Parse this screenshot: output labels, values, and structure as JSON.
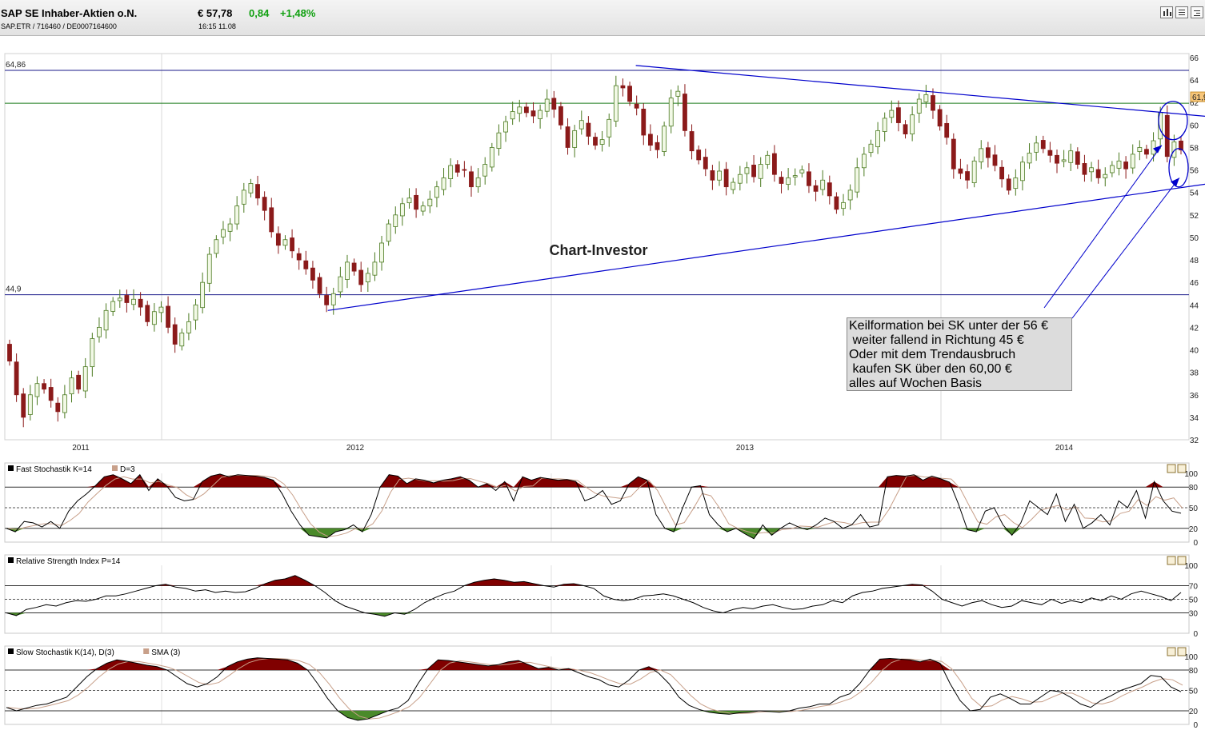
{
  "header": {
    "name": "SAP SE Inhaber-Aktien o.N.",
    "price": "€ 57,78",
    "change": "0,84",
    "change_pct": "+1,48%",
    "identifiers": "SAP.ETR   /   716460   /   DE0007164600",
    "time": "16:15     11.08"
  },
  "colors": {
    "up_candle": "#f2f9e6",
    "up_edge": "#4b7a20",
    "down_candle": "#8b1a1a",
    "overbought_fill": "#800000",
    "oversold_fill": "#4a8a2a",
    "trend_line": "#0000cc",
    "resistance_line": "#1a7a1a",
    "price_label_bg": "#f7c67a"
  },
  "toolbar": {
    "icons": [
      "bar-chart-icon",
      "news-icon",
      "settings-icon"
    ]
  },
  "chart_data": [
    {
      "type": "candlestick",
      "watermark": "Chart-Investor",
      "ylim": [
        32,
        66
      ],
      "yticks": [
        32,
        34,
        36,
        38,
        40,
        42,
        44,
        46,
        48,
        50,
        52,
        54,
        56,
        58,
        60,
        62,
        64,
        66
      ],
      "ytick_labels": [
        "32",
        "34",
        "36",
        "38",
        "40",
        "42",
        "44",
        "46",
        "48",
        "50",
        "52",
        "54",
        "56",
        "58",
        "60",
        "62",
        "64",
        "66"
      ],
      "xtick_labels": [
        "2011",
        "2012",
        "2013",
        "2014"
      ],
      "x_boundaries": [
        "2011",
        "2012",
        "2013",
        "2014"
      ],
      "current_price_label": "61,94",
      "levels": [
        {
          "label": "64,86",
          "value": 64.86
        },
        {
          "label": "44,9",
          "value": 44.9
        },
        {
          "label": "",
          "value": 61.94
        }
      ],
      "trendlines": [
        {
          "from": [
            2011.9,
            43.5
          ],
          "to": [
            2014.75,
            56.0
          ]
        },
        {
          "from": [
            2012.72,
            65.3
          ],
          "to": [
            2014.75,
            60.0
          ]
        }
      ],
      "closes": [
        39,
        36,
        34,
        36,
        37,
        36.5,
        35.5,
        34.5,
        36,
        37.5,
        36.5,
        38.5,
        41,
        42,
        43.5,
        44.3,
        44.6,
        44.2,
        44.5,
        43.8,
        42.5,
        43.4,
        43.8,
        42,
        40.5,
        41.5,
        42.5,
        44,
        46,
        48.5,
        49.8,
        50.7,
        51.2,
        52.8,
        54.2,
        54.8,
        53.5,
        52.4,
        50.5,
        49.3,
        49.8,
        48.8,
        48,
        47.2,
        46.2,
        45,
        44,
        45,
        46.5,
        47.8,
        47,
        45.8,
        46.8,
        47.8,
        49.5,
        51.2,
        52,
        53,
        53.5,
        52.5,
        52.8,
        53.4,
        54.5,
        55.3,
        56.4,
        55.8,
        56,
        54.5,
        55.3,
        56.5,
        58,
        59.3,
        60.3,
        61.2,
        61.6,
        61.1,
        60.8,
        61.3,
        62.3,
        61.4,
        60,
        58,
        59.5,
        60.4,
        59,
        58.2,
        58.7,
        60.5,
        63.5,
        63.3,
        62.1,
        61.5,
        59.1,
        58.2,
        57.8,
        59.9,
        62.4,
        63,
        59.5,
        57.7,
        56.9,
        56.1,
        55.1,
        55.9,
        54.5,
        54.9,
        55.6,
        56.2,
        55.4,
        56.5,
        57.3,
        55.6,
        54.8,
        55.3,
        55.5,
        56,
        54.6,
        54.1,
        55.1,
        53.7,
        52.5,
        53.1,
        54.2,
        56.2,
        57.4,
        58.3,
        59.5,
        60.6,
        61.3,
        60.2,
        59.2,
        60.9,
        62.3,
        62.7,
        61.3,
        59.9,
        58.9,
        56.1,
        55.7,
        55.1,
        56.8,
        57.9,
        57.1,
        56.4,
        55.2,
        54.2,
        55.3,
        56.7,
        57.5,
        58.4,
        57.9,
        57.3,
        56.6,
        56.9,
        57.7,
        56.5,
        55.6,
        56.2,
        55.3,
        55.6,
        56.4,
        56.8,
        56.1,
        57.4,
        58,
        57.4,
        58.6,
        61.1,
        57.2,
        58.5,
        57.78
      ],
      "opens_jitter_note": ""
    },
    {
      "type": "line",
      "title": "Fast Stochastik K=14",
      "legend": [
        {
          "swatch": "#000000",
          "label": "Fast Stochastik K=14"
        },
        {
          "swatch": "#c8a08a",
          "label": "D=3"
        }
      ],
      "ylim": [
        0,
        100
      ],
      "ytick_labels": [
        "0",
        "20",
        "50",
        "80",
        "100"
      ],
      "yticks": [
        0,
        20,
        50,
        80,
        100
      ],
      "values": [
        20,
        15,
        30,
        28,
        22,
        30,
        20,
        45,
        60,
        70,
        82,
        95,
        98,
        92,
        85,
        98,
        75,
        92,
        82,
        65,
        60,
        62,
        88,
        96,
        99,
        95,
        98,
        97,
        96,
        94,
        90,
        70,
        45,
        25,
        10,
        8,
        6,
        15,
        18,
        25,
        15,
        40,
        80,
        98,
        96,
        85,
        92,
        90,
        86,
        90,
        92,
        95,
        90,
        80,
        85,
        75,
        88,
        60,
        95,
        90,
        94,
        92,
        90,
        91,
        88,
        60,
        65,
        75,
        55,
        60,
        85,
        95,
        90,
        40,
        20,
        15,
        50,
        80,
        82,
        40,
        25,
        15,
        20,
        12,
        5,
        25,
        10,
        20,
        28,
        22,
        18,
        25,
        35,
        30,
        20,
        25,
        40,
        22,
        25,
        95,
        97,
        96,
        98,
        90,
        96,
        92,
        87,
        55,
        18,
        15,
        45,
        50,
        25,
        10,
        28,
        60,
        50,
        40,
        70,
        30,
        55,
        20,
        28,
        40,
        25,
        60,
        50,
        75,
        35,
        88,
        60,
        45,
        42
      ]
    },
    {
      "type": "line",
      "title": "Relative Strength Index P=14",
      "legend": [
        {
          "swatch": "#000000",
          "label": "Relative Strength Index P=14"
        }
      ],
      "ylim": [
        0,
        100
      ],
      "ytick_labels": [
        "0",
        "30",
        "50",
        "70",
        "100"
      ],
      "yticks": [
        0,
        30,
        50,
        70,
        100
      ],
      "values": [
        30,
        26,
        35,
        38,
        42,
        40,
        45,
        48,
        47,
        50,
        55,
        55,
        58,
        62,
        66,
        70,
        72,
        68,
        66,
        62,
        64,
        60,
        62,
        60,
        61,
        66,
        73,
        78,
        80,
        85,
        78,
        70,
        60,
        48,
        40,
        35,
        30,
        28,
        25,
        30,
        28,
        35,
        45,
        52,
        58,
        62,
        70,
        75,
        78,
        80,
        78,
        75,
        76,
        73,
        70,
        68,
        72,
        73,
        70,
        66,
        55,
        50,
        48,
        50,
        55,
        56,
        58,
        55,
        50,
        45,
        38,
        33,
        30,
        35,
        38,
        36,
        40,
        42,
        38,
        35,
        36,
        40,
        42,
        48,
        45,
        55,
        60,
        62,
        66,
        68,
        70,
        72,
        71,
        62,
        50,
        45,
        40,
        45,
        48,
        42,
        38,
        40,
        48,
        45,
        42,
        50,
        44,
        48,
        45,
        52,
        48,
        55,
        50,
        58,
        62,
        58,
        54,
        48,
        60
      ]
    },
    {
      "type": "line",
      "title": "Slow Stochastik K(14), D(3)",
      "legend": [
        {
          "swatch": "#000000",
          "label": "Slow Stochastik K(14), D(3)"
        },
        {
          "swatch": "#c8a08a",
          "label": "SMA (3)"
        }
      ],
      "ylim": [
        0,
        100
      ],
      "ytick_labels": [
        "0",
        "20",
        "50",
        "80",
        "100"
      ],
      "yticks": [
        0,
        20,
        50,
        80,
        100
      ],
      "values": [
        25,
        20,
        24,
        28,
        30,
        35,
        40,
        55,
        70,
        82,
        90,
        95,
        93,
        90,
        87,
        85,
        80,
        70,
        60,
        55,
        60,
        70,
        85,
        92,
        96,
        98,
        97,
        96,
        95,
        90,
        80,
        60,
        38,
        20,
        10,
        6,
        8,
        14,
        20,
        24,
        35,
        60,
        82,
        95,
        94,
        92,
        90,
        88,
        86,
        88,
        92,
        94,
        88,
        82,
        84,
        80,
        82,
        76,
        70,
        66,
        58,
        55,
        65,
        80,
        85,
        75,
        60,
        40,
        28,
        22,
        18,
        16,
        15,
        17,
        18,
        20,
        19,
        18,
        20,
        24,
        26,
        30,
        30,
        40,
        45,
        60,
        80,
        96,
        97,
        96,
        95,
        92,
        96,
        90,
        60,
        35,
        20,
        22,
        40,
        45,
        38,
        30,
        30,
        40,
        50,
        48,
        40,
        30,
        25,
        35,
        42,
        50,
        55,
        60,
        72,
        70,
        55,
        48
      ]
    }
  ],
  "annotation": {
    "lines": [
      "Keilformation bei SK unter der 56 €",
      " weiter fallend in Richtung 45 €",
      "Oder mit dem Trendausbruch",
      " kaufen SK über den 60,00 €",
      "alles auf Wochen Basis"
    ]
  }
}
